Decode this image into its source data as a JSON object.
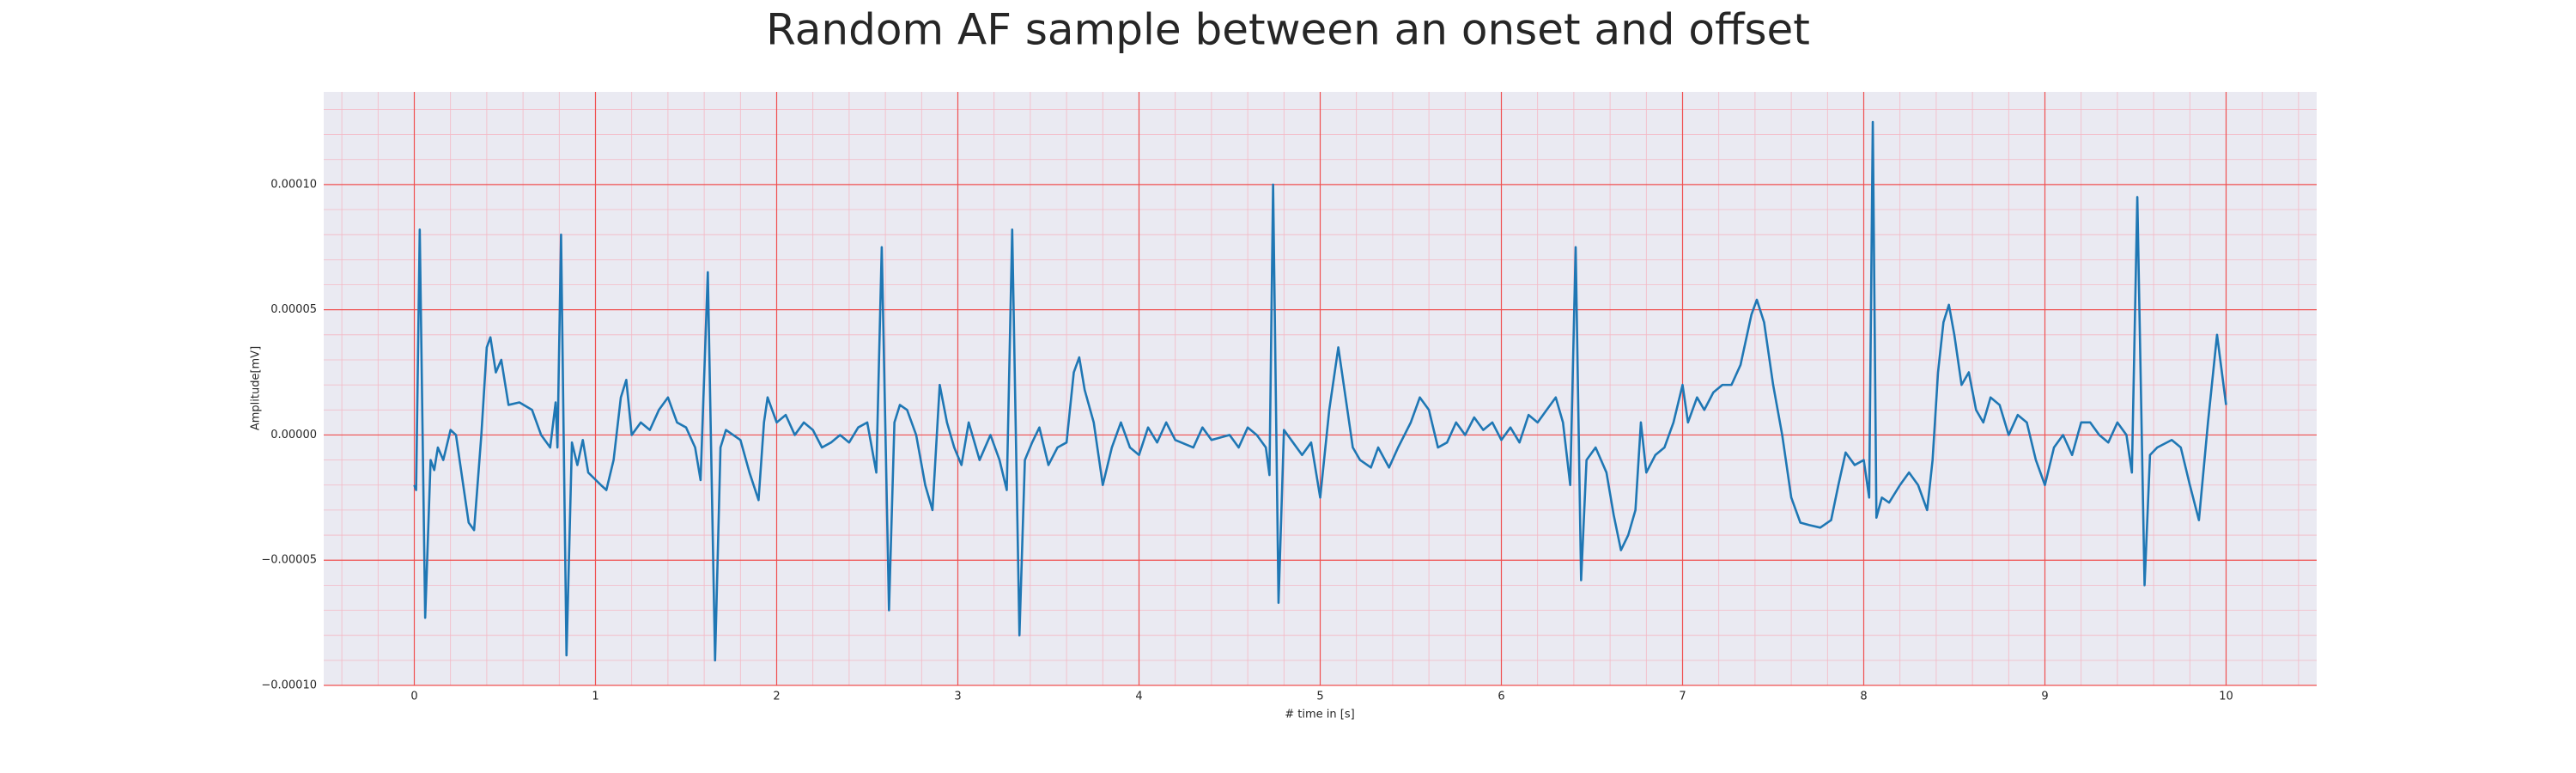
{
  "chart_data": {
    "type": "line",
    "title": "Random AF sample between an onset and offset",
    "xlabel": "# time in [s]",
    "ylabel": "Amplitude[mV]",
    "xlim": [
      -0.5,
      10.5
    ],
    "ylim": [
      -0.0001,
      0.000137
    ],
    "xticks": [
      0,
      1,
      2,
      3,
      4,
      5,
      6,
      7,
      8,
      9,
      10
    ],
    "yticks": [
      {
        "value": -0.0001,
        "label": "−0.00010"
      },
      {
        "value": -5e-05,
        "label": "−0.00005"
      },
      {
        "value": 0,
        "label": "0.00000"
      },
      {
        "value": 5e-05,
        "label": "0.00005"
      },
      {
        "value": 0.0001,
        "label": "0.00010"
      }
    ],
    "grid": true,
    "minor_grid": true,
    "color": "#1f77b4",
    "x": [
      0,
      0.01,
      0.03,
      0.06,
      0.09,
      0.11,
      0.13,
      0.16,
      0.2,
      0.23,
      0.26,
      0.3,
      0.33,
      0.37,
      0.4,
      0.42,
      0.45,
      0.48,
      0.52,
      0.58,
      0.65,
      0.7,
      0.75,
      0.78,
      0.79,
      0.81,
      0.84,
      0.87,
      0.9,
      0.93,
      0.96,
      1.03,
      1.06,
      1.1,
      1.14,
      1.17,
      1.2,
      1.25,
      1.3,
      1.35,
      1.4,
      1.45,
      1.5,
      1.55,
      1.58,
      1.62,
      1.66,
      1.69,
      1.72,
      1.8,
      1.85,
      1.9,
      1.93,
      1.95,
      2.0,
      2.05,
      2.1,
      2.15,
      2.2,
      2.25,
      2.3,
      2.35,
      2.4,
      2.45,
      2.5,
      2.55,
      2.58,
      2.62,
      2.65,
      2.68,
      2.72,
      2.77,
      2.82,
      2.86,
      2.9,
      2.94,
      2.98,
      3.02,
      3.06,
      3.12,
      3.18,
      3.23,
      3.27,
      3.3,
      3.34,
      3.37,
      3.41,
      3.45,
      3.5,
      3.55,
      3.6,
      3.64,
      3.67,
      3.7,
      3.75,
      3.8,
      3.85,
      3.9,
      3.95,
      4.0,
      4.05,
      4.1,
      4.15,
      4.2,
      4.3,
      4.35,
      4.4,
      4.5,
      4.55,
      4.6,
      4.65,
      4.7,
      4.72,
      4.74,
      4.77,
      4.8,
      4.85,
      4.9,
      4.95,
      5.0,
      5.05,
      5.1,
      5.14,
      5.18,
      5.22,
      5.28,
      5.32,
      5.38,
      5.43,
      5.5,
      5.55,
      5.6,
      5.65,
      5.7,
      5.75,
      5.8,
      5.85,
      5.9,
      5.95,
      6.0,
      6.05,
      6.1,
      6.15,
      6.2,
      6.25,
      6.3,
      6.34,
      6.38,
      6.41,
      6.44,
      6.47,
      6.52,
      6.58,
      6.62,
      6.66,
      6.7,
      6.74,
      6.77,
      6.8,
      6.85,
      6.9,
      6.95,
      7.0,
      7.03,
      7.08,
      7.12,
      7.17,
      7.22,
      7.27,
      7.32,
      7.38,
      7.41,
      7.45,
      7.5,
      7.55,
      7.6,
      7.65,
      7.7,
      7.76,
      7.82,
      7.86,
      7.9,
      7.95,
      8.0,
      8.03,
      8.05,
      8.07,
      8.1,
      8.14,
      8.2,
      8.25,
      8.3,
      8.35,
      8.38,
      8.41,
      8.44,
      8.47,
      8.5,
      8.54,
      8.58,
      8.62,
      8.66,
      8.7,
      8.75,
      8.8,
      8.85,
      8.9,
      8.95,
      9.0,
      9.05,
      9.1,
      9.15,
      9.2,
      9.25,
      9.3,
      9.35,
      9.4,
      9.45,
      9.48,
      9.51,
      9.55,
      9.58,
      9.62,
      9.7,
      9.75,
      9.8,
      9.85,
      9.9,
      9.95,
      10.0
    ],
    "values": [
      -2e-05,
      -2.2e-05,
      8.2e-05,
      -7.3e-05,
      -1e-05,
      -1.4e-05,
      -5e-06,
      -1e-05,
      2e-06,
      0,
      -1.5e-05,
      -3.5e-05,
      -3.8e-05,
      0,
      3.5e-05,
      3.9e-05,
      2.5e-05,
      3e-05,
      1.2e-05,
      1.3e-05,
      1e-05,
      0,
      -5e-06,
      1.3e-05,
      -5e-06,
      8e-05,
      -8.8e-05,
      -3e-06,
      -1.2e-05,
      -2e-06,
      -1.5e-05,
      -2e-05,
      -2.2e-05,
      -1e-05,
      1.5e-05,
      2.2e-05,
      0,
      5e-06,
      2e-06,
      1e-05,
      1.5e-05,
      5e-06,
      3e-06,
      -5e-06,
      -1.8e-05,
      6.5e-05,
      -9e-05,
      -5e-06,
      2e-06,
      -2e-06,
      -1.5e-05,
      -2.6e-05,
      5e-06,
      1.5e-05,
      5e-06,
      8e-06,
      0,
      5e-06,
      2e-06,
      -5e-06,
      -3e-06,
      0,
      -3e-06,
      3e-06,
      5e-06,
      -1.5e-05,
      7.5e-05,
      -7e-05,
      5e-06,
      1.2e-05,
      1e-05,
      0,
      -2e-05,
      -3e-05,
      2e-05,
      5e-06,
      -5e-06,
      -1.2e-05,
      5e-06,
      -1e-05,
      0,
      -1e-05,
      -2.2e-05,
      8.2e-05,
      -8e-05,
      -1e-05,
      -3e-06,
      3e-06,
      -1.2e-05,
      -5e-06,
      -3e-06,
      2.5e-05,
      3.1e-05,
      1.8e-05,
      5e-06,
      -2e-05,
      -5e-06,
      5e-06,
      -5e-06,
      -8e-06,
      3e-06,
      -3e-06,
      5e-06,
      -2e-06,
      -5e-06,
      3e-06,
      -2e-06,
      0,
      -5e-06,
      3e-06,
      0,
      -5e-06,
      -1.6e-05,
      0.0001,
      -6.7e-05,
      2e-06,
      -3e-06,
      -8e-06,
      -3e-06,
      -2.5e-05,
      1e-05,
      3.5e-05,
      1.5e-05,
      -5e-06,
      -1e-05,
      -1.3e-05,
      -5e-06,
      -1.3e-05,
      -5e-06,
      5e-06,
      1.5e-05,
      1e-05,
      -5e-06,
      -3e-06,
      5e-06,
      0,
      7e-06,
      2e-06,
      5e-06,
      -2e-06,
      3e-06,
      -3e-06,
      8e-06,
      5e-06,
      1e-05,
      1.5e-05,
      5e-06,
      -2e-05,
      7.5e-05,
      -5.8e-05,
      -1e-05,
      -5e-06,
      -1.5e-05,
      -3.2e-05,
      -4.6e-05,
      -4e-05,
      -3e-05,
      5e-06,
      -1.5e-05,
      -8e-06,
      -5e-06,
      5e-06,
      2e-05,
      5e-06,
      1.5e-05,
      1e-05,
      1.7e-05,
      2e-05,
      2e-05,
      2.8e-05,
      4.8e-05,
      5.4e-05,
      4.5e-05,
      2e-05,
      0,
      -2.5e-05,
      -3.5e-05,
      -3.6e-05,
      -3.7e-05,
      -3.4e-05,
      -2e-05,
      -7e-06,
      -1.2e-05,
      -1e-05,
      -2.5e-05,
      0.000125,
      -3.3e-05,
      -2.5e-05,
      -2.7e-05,
      -2e-05,
      -1.5e-05,
      -2e-05,
      -3e-05,
      -1e-05,
      2.5e-05,
      4.5e-05,
      5.2e-05,
      4e-05,
      2e-05,
      2.5e-05,
      1e-05,
      5e-06,
      1.5e-05,
      1.2e-05,
      0,
      8e-06,
      5e-06,
      -1e-05,
      -2e-05,
      -5e-06,
      0,
      -8e-06,
      5e-06,
      5e-06,
      0,
      -3e-06,
      5e-06,
      0,
      -1.5e-05,
      9.5e-05,
      -6e-05,
      -8e-06,
      -5e-06,
      -2e-06,
      -5e-06,
      -2e-05,
      -3.4e-05,
      5e-06,
      4e-05,
      1.2e-05
    ]
  }
}
